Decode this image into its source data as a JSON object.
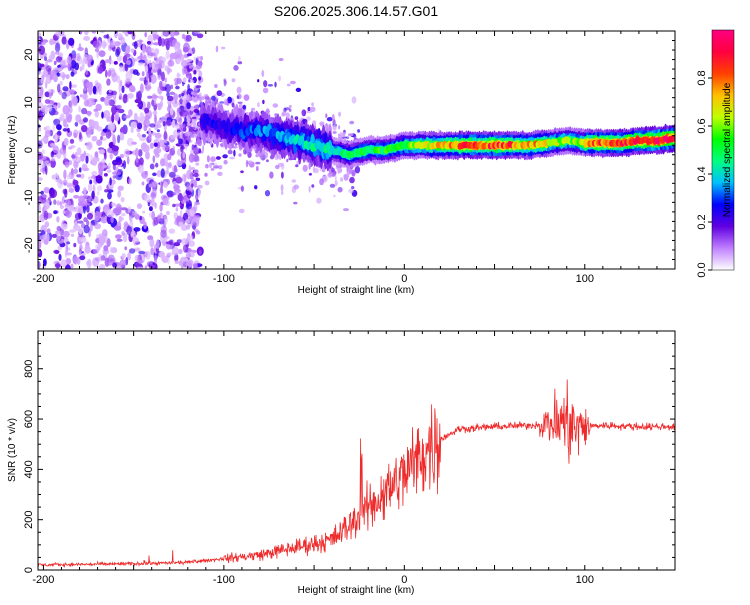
{
  "title": "S206.2025.306.14.57.G01",
  "chart_data": [
    {
      "type": "heatmap",
      "description_of_data": "spectrogram of frequency vs. height of straight line",
      "xlabel": "Height of straight line (km)",
      "ylabel": "Frequency (Hz)",
      "xlim": [
        -203,
        150
      ],
      "ylim": [
        -25,
        25
      ],
      "xticks": [
        -200,
        -100,
        0,
        100
      ],
      "yticks": [
        -20,
        -10,
        0,
        10,
        20
      ],
      "colorbar": {
        "label": "Normalized spectral amplitude",
        "range": [
          0,
          1
        ],
        "ticks": [
          0.0,
          0.2,
          0.4,
          0.6,
          0.8
        ],
        "colors": [
          "#ffffff",
          "#c080ff",
          "#6000e0",
          "#0000ff",
          "#00c0ff",
          "#00ff80",
          "#00ff00",
          "#c0ff00",
          "#ffc000",
          "#ff4000",
          "#ff0040",
          "#ff0080"
        ]
      },
      "ridge": {
        "x": [
          -110,
          -100,
          -90,
          -80,
          -70,
          -60,
          -50,
          -40,
          -30,
          -20,
          -10,
          0,
          10,
          20,
          30,
          40,
          50,
          60,
          70,
          80,
          90,
          100,
          110,
          120,
          130,
          140,
          150
        ],
        "y": [
          6,
          5,
          4,
          4,
          3,
          2,
          1,
          0,
          -1,
          0,
          0,
          1,
          1,
          1,
          1,
          1,
          1,
          1,
          1,
          1.5,
          2,
          1.5,
          1.5,
          1.5,
          2,
          2,
          2.5
        ]
      }
    },
    {
      "type": "line",
      "xlabel": "Height of straight line (km)",
      "ylabel": "SNR (10 * v/v)",
      "xlim": [
        -203,
        150
      ],
      "ylim": [
        0,
        950
      ],
      "xticks": [
        -200,
        -100,
        0,
        100
      ],
      "yticks": [
        0,
        200,
        400,
        600,
        800
      ],
      "color": "#ee2a2a",
      "envelope": {
        "x": [
          -203,
          -150,
          -120,
          -100,
          -80,
          -60,
          -40,
          -30,
          -20,
          -10,
          0,
          10,
          20,
          30,
          50,
          70,
          80,
          90,
          95,
          100,
          110,
          130,
          150
        ],
        "y": [
          20,
          25,
          30,
          45,
          60,
          90,
          120,
          180,
          250,
          310,
          380,
          460,
          520,
          560,
          570,
          575,
          580,
          590,
          560,
          570,
          575,
          570,
          570
        ]
      }
    }
  ]
}
